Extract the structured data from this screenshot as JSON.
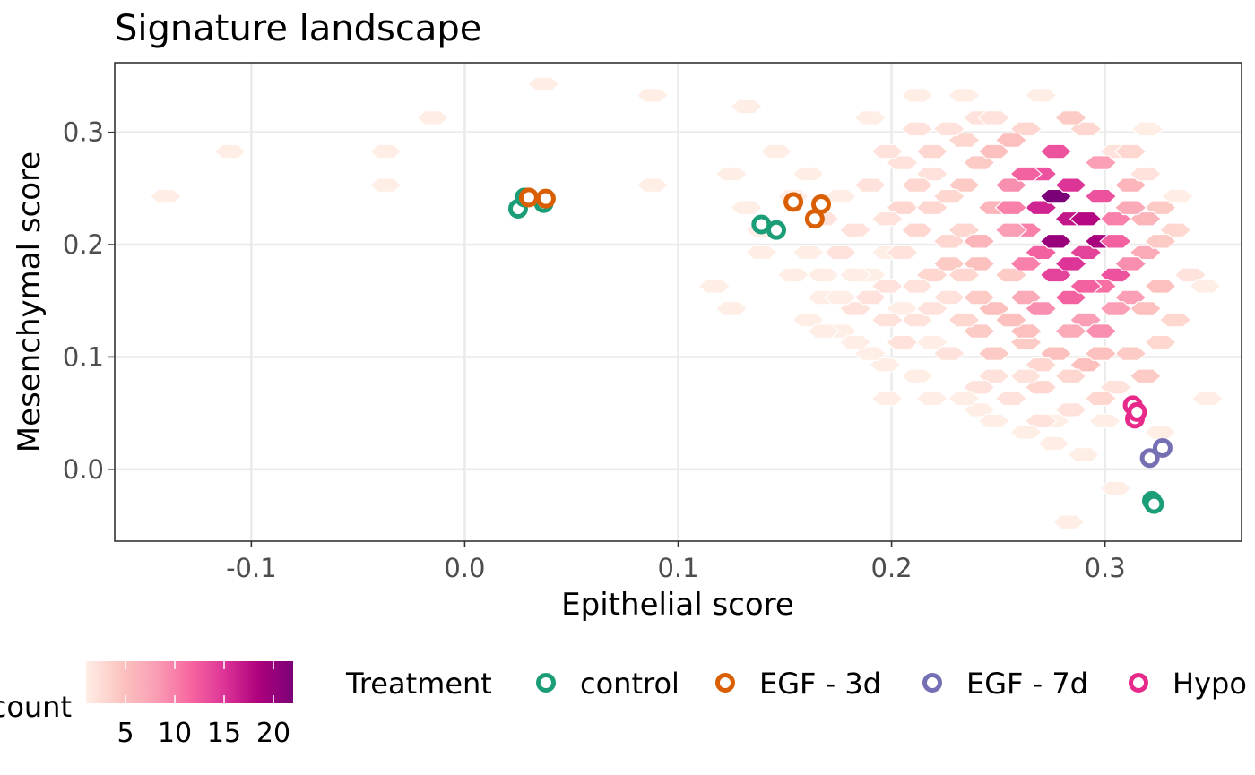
{
  "chart_data": {
    "type": "scatter",
    "title": "Signature landscape",
    "xlabel": "Epithelial score",
    "ylabel": "Mesenchymal score",
    "xlim": [
      -0.164,
      0.364
    ],
    "ylim": [
      -0.064,
      0.362
    ],
    "x_ticks": [
      -0.1,
      0.0,
      0.1,
      0.2,
      0.3
    ],
    "x_tick_labels": [
      "-0.1",
      "0.0",
      "0.1",
      "0.2",
      "0.3"
    ],
    "y_ticks": [
      0.0,
      0.1,
      0.2,
      0.3
    ],
    "y_tick_labels": [
      "0.0",
      "0.1",
      "0.2",
      "0.3"
    ],
    "grid": true,
    "legend_position": "bottom",
    "hexbin": {
      "fill_label": "count",
      "fill_range": [
        1,
        22
      ],
      "colorbar_breaks": [
        5,
        10,
        15,
        20
      ],
      "colorbar_labels": [
        "5",
        "10",
        "15",
        "20"
      ],
      "colors": [
        "#ffeee6",
        "#fcc5c0",
        "#fa9fb5",
        "#f768a1",
        "#dd3497",
        "#ae017e",
        "#7a0177"
      ],
      "x_bin_width": 0.0146,
      "y_bin_spacing": 0.01,
      "bins": [
        [
          -0.14,
          0.243,
          1
        ],
        [
          -0.11,
          0.283,
          1
        ],
        [
          -0.037,
          0.253,
          1
        ],
        [
          -0.037,
          0.283,
          1
        ],
        [
          -0.015,
          0.313,
          1
        ],
        [
          0.037,
          0.343,
          1
        ],
        [
          0.088,
          0.333,
          1
        ],
        [
          0.088,
          0.253,
          1
        ],
        [
          0.117,
          0.163,
          1
        ],
        [
          0.125,
          0.143,
          1
        ],
        [
          0.125,
          0.263,
          1
        ],
        [
          0.132,
          0.323,
          1
        ],
        [
          0.132,
          0.233,
          1
        ],
        [
          0.139,
          0.213,
          1
        ],
        [
          0.139,
          0.193,
          1
        ],
        [
          0.146,
          0.283,
          1
        ],
        [
          0.154,
          0.173,
          1
        ],
        [
          0.161,
          0.133,
          1
        ],
        [
          0.161,
          0.263,
          1
        ],
        [
          0.168,
          0.153,
          1
        ],
        [
          0.176,
          0.243,
          1
        ],
        [
          0.183,
          0.213,
          2
        ],
        [
          0.19,
          0.313,
          1
        ],
        [
          0.19,
          0.173,
          1
        ],
        [
          0.197,
          0.093,
          1
        ],
        [
          0.198,
          0.193,
          1
        ],
        [
          0.205,
          0.143,
          1
        ],
        [
          0.205,
          0.233,
          3
        ],
        [
          0.212,
          0.333,
          1
        ],
        [
          0.212,
          0.083,
          1
        ],
        [
          0.219,
          0.263,
          2
        ],
        [
          0.219,
          0.113,
          1
        ],
        [
          0.227,
          0.153,
          2
        ],
        [
          0.227,
          0.203,
          3
        ],
        [
          0.234,
          0.333,
          1
        ],
        [
          0.234,
          0.213,
          3
        ],
        [
          0.241,
          0.273,
          4
        ],
        [
          0.241,
          0.183,
          5
        ],
        [
          0.248,
          0.233,
          6
        ],
        [
          0.248,
          0.143,
          5
        ],
        [
          0.256,
          0.253,
          9
        ],
        [
          0.256,
          0.173,
          4
        ],
        [
          0.263,
          0.213,
          10
        ],
        [
          0.263,
          0.113,
          4
        ],
        [
          0.27,
          0.263,
          13
        ],
        [
          0.27,
          0.233,
          16
        ],
        [
          0.27,
          0.193,
          12
        ],
        [
          0.277,
          0.283,
          13
        ],
        [
          0.277,
          0.243,
          22
        ],
        [
          0.277,
          0.173,
          14
        ],
        [
          0.284,
          0.223,
          17
        ],
        [
          0.284,
          0.253,
          15
        ],
        [
          0.284,
          0.153,
          12
        ],
        [
          0.291,
          0.193,
          14
        ],
        [
          0.291,
          0.133,
          8
        ],
        [
          0.298,
          0.203,
          19
        ],
        [
          0.298,
          0.243,
          13
        ],
        [
          0.298,
          0.123,
          9
        ],
        [
          0.305,
          0.173,
          13
        ],
        [
          0.305,
          0.223,
          10
        ],
        [
          0.312,
          0.153,
          8
        ],
        [
          0.312,
          0.253,
          6
        ],
        [
          0.319,
          0.193,
          7
        ],
        [
          0.319,
          0.083,
          4
        ],
        [
          0.326,
          0.163,
          5
        ],
        [
          0.326,
          0.233,
          4
        ],
        [
          0.333,
          0.133,
          3
        ],
        [
          0.333,
          0.213,
          3
        ],
        [
          0.34,
          0.173,
          2
        ],
        [
          0.347,
          0.163,
          1
        ],
        [
          0.348,
          0.063,
          1
        ],
        [
          0.3,
          0.043,
          1
        ],
        [
          0.305,
          0.073,
          2
        ],
        [
          0.29,
          0.013,
          1
        ],
        [
          0.276,
          0.023,
          1
        ],
        [
          0.276,
          0.043,
          1
        ],
        [
          0.283,
          -0.047,
          1
        ],
        [
          0.305,
          -0.017,
          1
        ],
        [
          0.32,
          0.303,
          1
        ],
        [
          0.326,
          0.033,
          1
        ],
        [
          0.19,
          0.253,
          2
        ],
        [
          0.205,
          0.273,
          2
        ],
        [
          0.212,
          0.303,
          2
        ],
        [
          0.234,
          0.293,
          3
        ],
        [
          0.241,
          0.313,
          2
        ],
        [
          0.263,
          0.303,
          3
        ],
        [
          0.27,
          0.333,
          1
        ],
        [
          0.291,
          0.303,
          3
        ],
        [
          0.305,
          0.283,
          2
        ],
        [
          0.319,
          0.263,
          2
        ],
        [
          0.334,
          0.243,
          1
        ],
        [
          0.176,
          0.123,
          1
        ],
        [
          0.19,
          0.103,
          1
        ],
        [
          0.212,
          0.133,
          2
        ],
        [
          0.227,
          0.103,
          2
        ],
        [
          0.248,
          0.083,
          2
        ],
        [
          0.256,
          0.063,
          2
        ],
        [
          0.27,
          0.073,
          3
        ],
        [
          0.291,
          0.093,
          5
        ],
        [
          0.298,
          0.063,
          3
        ],
        [
          0.241,
          0.053,
          1
        ],
        [
          0.219,
          0.063,
          1
        ],
        [
          0.198,
          0.063,
          1
        ],
        [
          0.312,
          0.103,
          4
        ],
        [
          0.326,
          0.113,
          3
        ],
        [
          0.263,
          0.153,
          7
        ],
        [
          0.241,
          0.123,
          4
        ],
        [
          0.219,
          0.173,
          3
        ],
        [
          0.198,
          0.163,
          2
        ],
        [
          0.183,
          0.143,
          2
        ],
        [
          0.168,
          0.123,
          1
        ],
        [
          0.176,
          0.193,
          2
        ],
        [
          0.168,
          0.223,
          2
        ],
        [
          0.161,
          0.193,
          1
        ],
        [
          0.154,
          0.243,
          1
        ],
        [
          0.256,
          0.293,
          5
        ],
        [
          0.248,
          0.313,
          2
        ],
        [
          0.284,
          0.313,
          4
        ],
        [
          0.312,
          0.283,
          3
        ],
        [
          0.277,
          0.203,
          20
        ],
        [
          0.291,
          0.223,
          18
        ],
        [
          0.305,
          0.203,
          12
        ],
        [
          0.256,
          0.213,
          8
        ],
        [
          0.263,
          0.183,
          10
        ],
        [
          0.284,
          0.183,
          15
        ],
        [
          0.298,
          0.163,
          11
        ],
        [
          0.312,
          0.183,
          9
        ],
        [
          0.319,
          0.223,
          6
        ],
        [
          0.27,
          0.143,
          9
        ],
        [
          0.284,
          0.123,
          7
        ],
        [
          0.248,
          0.103,
          4
        ],
        [
          0.234,
          0.133,
          3
        ],
        [
          0.241,
          0.153,
          4
        ],
        [
          0.227,
          0.183,
          4
        ],
        [
          0.212,
          0.213,
          3
        ],
        [
          0.198,
          0.223,
          2
        ],
        [
          0.205,
          0.193,
          2
        ],
        [
          0.219,
          0.233,
          3
        ],
        [
          0.234,
          0.253,
          4
        ],
        [
          0.248,
          0.283,
          5
        ],
        [
          0.256,
          0.233,
          10
        ],
        [
          0.263,
          0.263,
          12
        ],
        [
          0.298,
          0.273,
          8
        ],
        [
          0.312,
          0.233,
          7
        ],
        [
          0.326,
          0.203,
          4
        ],
        [
          0.319,
          0.143,
          5
        ],
        [
          0.305,
          0.143,
          8
        ],
        [
          0.291,
          0.163,
          12
        ],
        [
          0.263,
          0.123,
          5
        ],
        [
          0.277,
          0.103,
          5
        ],
        [
          0.298,
          0.103,
          5
        ],
        [
          0.27,
          0.093,
          3
        ],
        [
          0.256,
          0.133,
          5
        ],
        [
          0.241,
          0.203,
          6
        ],
        [
          0.227,
          0.243,
          3
        ],
        [
          0.212,
          0.253,
          3
        ],
        [
          0.198,
          0.283,
          2
        ],
        [
          0.219,
          0.283,
          3
        ],
        [
          0.227,
          0.303,
          2
        ],
        [
          0.234,
          0.173,
          3
        ],
        [
          0.219,
          0.143,
          2
        ],
        [
          0.205,
          0.113,
          2
        ],
        [
          0.212,
          0.163,
          2
        ],
        [
          0.198,
          0.133,
          2
        ],
        [
          0.19,
          0.153,
          2
        ],
        [
          0.183,
          0.173,
          1
        ],
        [
          0.183,
          0.113,
          1
        ],
        [
          0.168,
          0.173,
          1
        ],
        [
          0.176,
          0.153,
          1
        ],
        [
          0.241,
          0.073,
          2
        ],
        [
          0.263,
          0.083,
          2
        ],
        [
          0.284,
          0.083,
          3
        ],
        [
          0.284,
          0.053,
          2
        ],
        [
          0.27,
          0.043,
          2
        ],
        [
          0.263,
          0.033,
          1
        ],
        [
          0.248,
          0.043,
          1
        ],
        [
          0.234,
          0.063,
          1
        ]
      ]
    },
    "series": [
      {
        "name": "control",
        "color": "#1b9e77",
        "x": [
          0.025,
          0.028,
          0.037,
          0.139,
          0.146,
          0.322,
          0.323
        ],
        "y": [
          0.232,
          0.242,
          0.237,
          0.218,
          0.213,
          -0.028,
          -0.031
        ]
      },
      {
        "name": "EGF - 3d",
        "color": "#d95f02",
        "x": [
          0.03,
          0.038,
          0.154,
          0.164,
          0.167
        ],
        "y": [
          0.242,
          0.241,
          0.238,
          0.223,
          0.236
        ]
      },
      {
        "name": "EGF - 7d",
        "color": "#7570b3",
        "x": [
          0.321,
          0.327
        ],
        "y": [
          0.01,
          0.019
        ]
      },
      {
        "name": "Hypo",
        "color": "#e7298a",
        "x": [
          0.313,
          0.314,
          0.315
        ],
        "y": [
          0.057,
          0.045,
          0.051
        ]
      }
    ],
    "legend": {
      "title": "Treatment",
      "labels": [
        "control",
        "EGF - 3d",
        "EGF - 7d",
        "Hypo"
      ],
      "colors": [
        "#1b9e77",
        "#d95f02",
        "#7570b3",
        "#e7298a"
      ]
    }
  }
}
